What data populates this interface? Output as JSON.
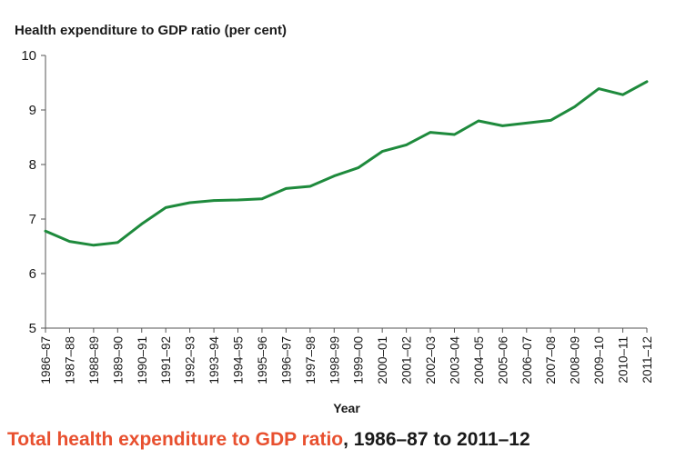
{
  "chart_data": {
    "type": "line",
    "title": "Health expenditure to GDP ratio (per cent)",
    "xlabel": "Year",
    "ylabel": "Health expenditure to GDP ratio (per cent)",
    "ylim": [
      5,
      10
    ],
    "yticks": [
      5,
      6,
      7,
      8,
      9,
      10
    ],
    "grid": false,
    "categories": [
      "1986–87",
      "1987–88",
      "1988–89",
      "1989–90",
      "1990–91",
      "1991–92",
      "1992–93",
      "1993–94",
      "1994–95",
      "1995–96",
      "1996–97",
      "1997–98",
      "1998–99",
      "1999–00",
      "2000–01",
      "2001–02",
      "2002–03",
      "2003–04",
      "2004–05",
      "2005–06",
      "2006–07",
      "2007–08",
      "2008–09",
      "2009–10",
      "2010–11",
      "2011–12"
    ],
    "series": [
      {
        "values": [
          6.78,
          6.59,
          6.52,
          6.57,
          6.91,
          7.21,
          7.3,
          7.34,
          7.35,
          7.37,
          7.56,
          7.6,
          7.79,
          7.94,
          8.24,
          8.36,
          8.59,
          8.55,
          8.8,
          8.71,
          8.76,
          8.81,
          9.06,
          9.39,
          9.28,
          9.52
        ],
        "color": "#1e8a3c"
      }
    ]
  },
  "caption": {
    "highlight": "Total health expenditure to GDP ratio",
    "rest": ", 1986–87 to 2011–12",
    "highlight_color": "#e8502f"
  }
}
